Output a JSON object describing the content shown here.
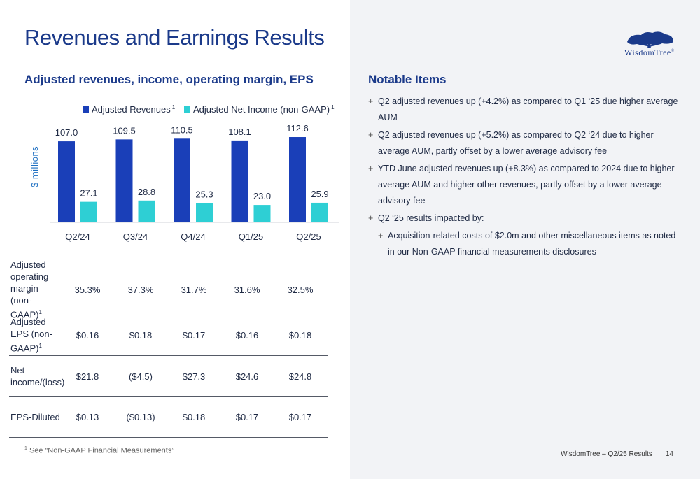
{
  "page": {
    "title": "Revenues and Earnings Results",
    "logo_text": "WisdomTree",
    "logo_mark": "®"
  },
  "chart_section": {
    "title": "Adjusted revenues, income, operating margin, EPS"
  },
  "chart_data": {
    "type": "bar",
    "categories": [
      "Q2/24",
      "Q3/24",
      "Q4/24",
      "Q1/25",
      "Q2/25"
    ],
    "series": [
      {
        "name": "Adjusted Revenues",
        "footnote": "1",
        "color": "#1a3fb8",
        "values": [
          107.0,
          109.5,
          110.5,
          108.1,
          112.6
        ]
      },
      {
        "name": "Adjusted Net Income (non-GAAP)",
        "footnote": "1",
        "color": "#2ecfd4",
        "values": [
          27.1,
          28.8,
          25.3,
          23.0,
          25.9
        ]
      }
    ],
    "ylabel": "$ millions",
    "legend": "top"
  },
  "metrics": {
    "rows": [
      {
        "label": "Adjusted operating margin (non-GAAP)",
        "sup": "1",
        "values": [
          "35.3%",
          "37.3%",
          "31.7%",
          "31.6%",
          "32.5%"
        ]
      },
      {
        "label": "Adjusted EPS (non-GAAP)",
        "sup": "1",
        "values": [
          "$0.16",
          "$0.18",
          "$0.17",
          "$0.16",
          "$0.18"
        ]
      },
      {
        "label": "Net income/(loss)",
        "sup": "",
        "values": [
          "$21.8",
          "($4.5)",
          "$27.3",
          "$24.6",
          "$24.8"
        ]
      },
      {
        "label": "EPS-Diluted",
        "sup": "",
        "values": [
          "$0.13",
          "($0.13)",
          "$0.18",
          "$0.17",
          "$0.17"
        ]
      }
    ]
  },
  "notable": {
    "title": "Notable Items",
    "items": [
      {
        "text": "Q2 adjusted revenues up (+4.2%) as compared to Q1 ‘25 due higher average AUM",
        "level": 1
      },
      {
        "text": "Q2 adjusted revenues up (+5.2%) as compared to Q2 ‘24 due to higher average AUM, partly offset by a lower average advisory fee",
        "level": 1
      },
      {
        "text": "YTD June adjusted revenues up (+8.3%) as compared to 2024 due to higher average AUM and higher other revenues, partly offset by a lower average advisory fee",
        "level": 1
      },
      {
        "text": "Q2 ‘25 results impacted by:",
        "level": 1
      },
      {
        "text": "Acquisition-related costs of $2.0m and other miscellaneous items as noted in our Non-GAAP financial measurements disclosures",
        "level": 2
      }
    ]
  },
  "footer": {
    "footnote_mark": "1",
    "footnote": "See “Non-GAAP Financial Measurements”",
    "label": "WisdomTree – Q2/25 Results",
    "page_number": "14"
  }
}
